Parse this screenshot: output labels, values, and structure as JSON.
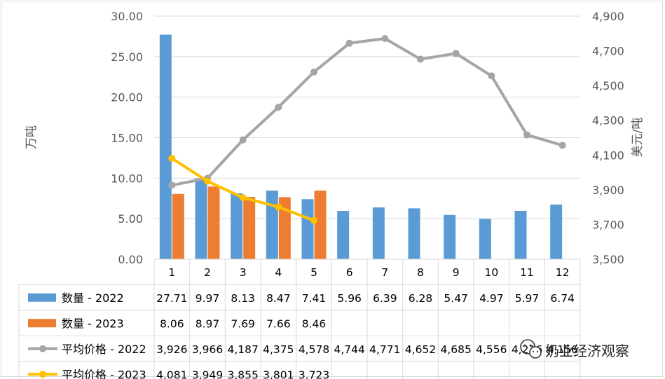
{
  "chart_data": {
    "type": "bar",
    "categories": [
      "1",
      "2",
      "3",
      "4",
      "5",
      "6",
      "7",
      "8",
      "9",
      "10",
      "11",
      "12"
    ],
    "ylabel": "万吨",
    "y2label": "美元/吨",
    "ylim": [
      0,
      30
    ],
    "y2lim": [
      3500,
      4900
    ],
    "yticks": [
      "0.00",
      "5.00",
      "10.00",
      "15.00",
      "20.00",
      "25.00",
      "30.00"
    ],
    "y2ticks": [
      "3,500",
      "3,700",
      "3,900",
      "4,100",
      "4,300",
      "4,500",
      "4,700",
      "4,900"
    ],
    "grid": true,
    "legend": "data-table-below",
    "series": [
      {
        "name": "数量 - 2022",
        "type": "bar",
        "axis": "left",
        "color": "#5b9bd5",
        "values": [
          27.71,
          9.97,
          8.13,
          8.47,
          7.41,
          5.96,
          6.39,
          6.28,
          5.47,
          4.97,
          5.97,
          6.74
        ],
        "labels": [
          "27.71",
          "9.97",
          "8.13",
          "8.47",
          "7.41",
          "5.96",
          "6.39",
          "6.28",
          "5.47",
          "4.97",
          "5.97",
          "6.74"
        ]
      },
      {
        "name": "数量 - 2023",
        "type": "bar",
        "axis": "left",
        "color": "#ed7d31",
        "values": [
          8.06,
          8.97,
          7.69,
          7.66,
          8.46,
          null,
          null,
          null,
          null,
          null,
          null,
          null
        ],
        "labels": [
          "8.06",
          "8.97",
          "7.69",
          "7.66",
          "8.46",
          "",
          "",
          "",
          "",
          "",
          "",
          ""
        ]
      },
      {
        "name": "平均价格 - 2022",
        "type": "line",
        "axis": "right",
        "color": "#a5a5a5",
        "values": [
          3926,
          3966,
          4187,
          4375,
          4578,
          4744,
          4771,
          4652,
          4685,
          4556,
          4216,
          4156
        ],
        "labels": [
          "3,926",
          "3,966",
          "4,187",
          "4,375",
          "4,578",
          "4,744",
          "4,771",
          "4,652",
          "4,685",
          "4,556",
          "4,216",
          "4,156"
        ]
      },
      {
        "name": "平均价格 - 2023",
        "type": "line",
        "axis": "right",
        "color": "#ffc000",
        "values": [
          4081,
          3949,
          3855,
          3801,
          3723,
          null,
          null,
          null,
          null,
          null,
          null,
          null
        ],
        "labels": [
          "4,081",
          "3,949",
          "3,855",
          "3,801",
          "3,723",
          "",
          "",
          "",
          "",
          "",
          "",
          ""
        ]
      }
    ]
  },
  "watermark": {
    "text": "奶业经济观察",
    "icon": "wechat-icon"
  }
}
